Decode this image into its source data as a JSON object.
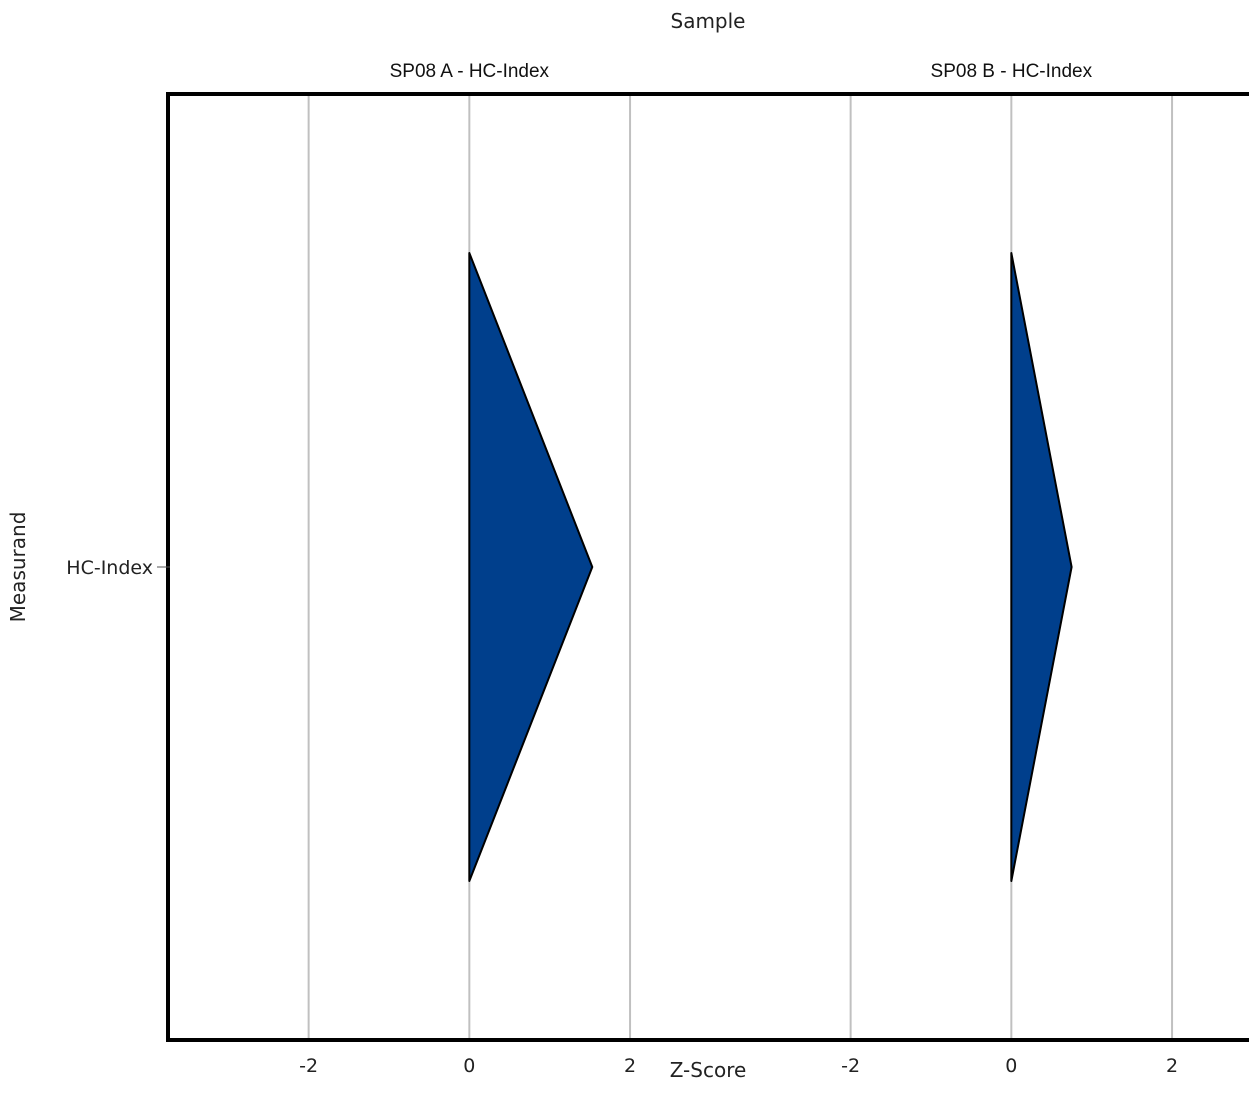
{
  "chart_data": {
    "type": "area",
    "title": "Sample",
    "xlabel": "Z-Score",
    "ylabel": "Measurand",
    "categories": [
      "HC-Index"
    ],
    "x_ticks": [
      "-2",
      "0",
      "2"
    ],
    "xlim": [
      -3.75,
      2.97
    ],
    "grid": true,
    "mark_color": "#003f8c",
    "panels": [
      {
        "name": "SP08 A - HC-Index",
        "measurand": "HC-Index",
        "z_score": 1.53
      },
      {
        "name": "SP08 B - HC-Index",
        "measurand": "HC-Index",
        "z_score": 0.75
      }
    ]
  }
}
